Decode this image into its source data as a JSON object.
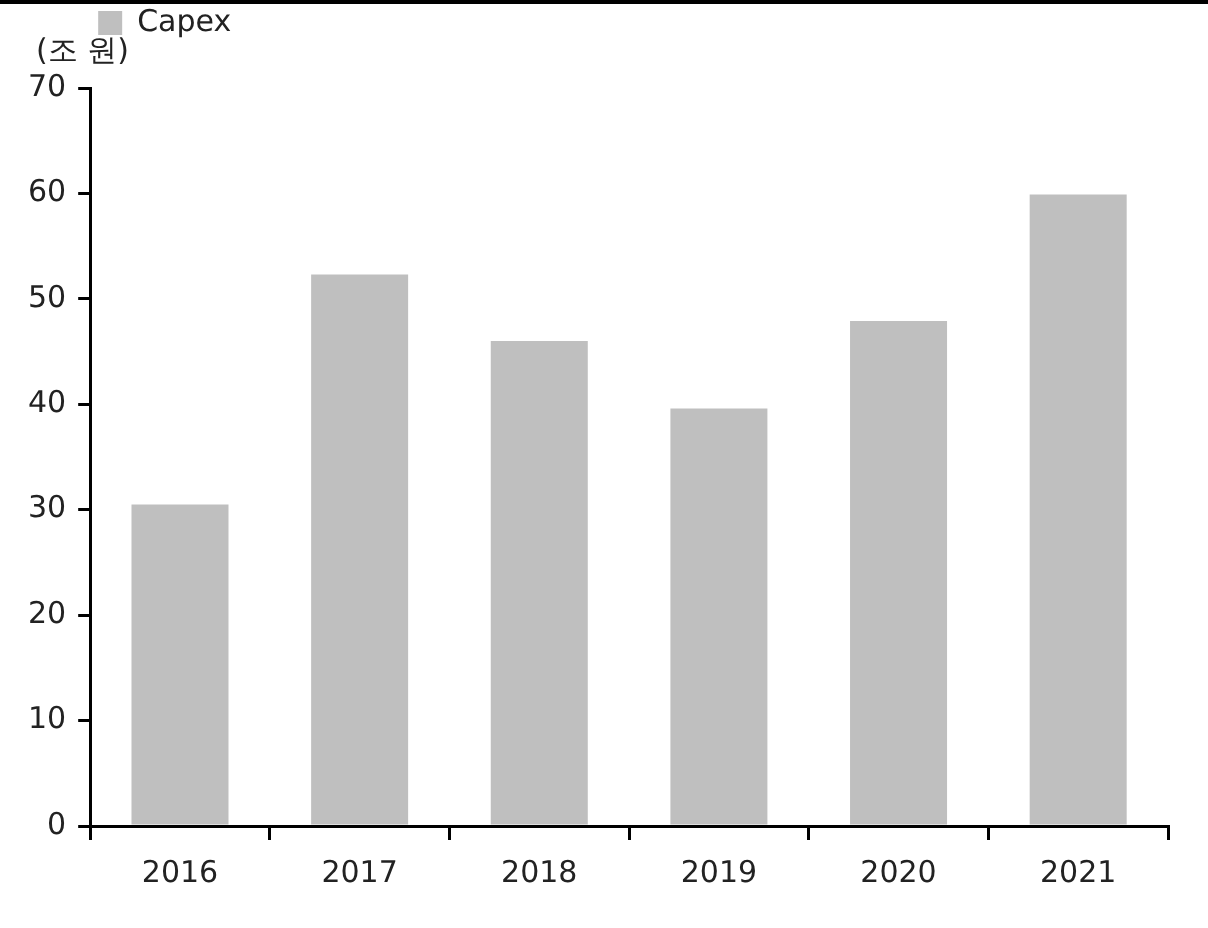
{
  "chart_data": {
    "type": "bar",
    "ylabel": "(조 원)",
    "categories": [
      "2016",
      "2017",
      "2018",
      "2019",
      "2020",
      "2021"
    ],
    "series": [
      {
        "name": "Capex",
        "color": "#bfbfbf",
        "values": [
          30.5,
          52.3,
          46.0,
          39.6,
          47.9,
          59.9
        ]
      }
    ],
    "ylim": [
      0,
      70
    ],
    "yticks": [
      0,
      10,
      20,
      30,
      40,
      50,
      60,
      70
    ],
    "grid": false,
    "legend": "top left"
  }
}
